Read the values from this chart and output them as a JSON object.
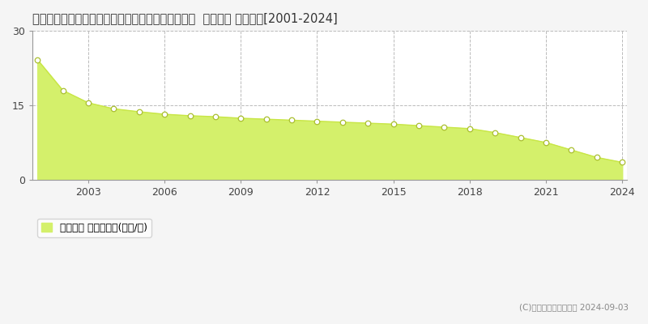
{
  "title": "愛知県知多郡南知多町大字山海字荒布越１２０番２  地価公示 地価推移[2001-2024]",
  "years": [
    2001,
    2002,
    2003,
    2004,
    2005,
    2006,
    2007,
    2008,
    2009,
    2010,
    2011,
    2012,
    2013,
    2014,
    2015,
    2016,
    2017,
    2018,
    2019,
    2020,
    2021,
    2022,
    2023,
    2024
  ],
  "values": [
    24.2,
    18.0,
    15.5,
    14.3,
    13.7,
    13.2,
    12.9,
    12.7,
    12.4,
    12.2,
    12.0,
    11.8,
    11.6,
    11.4,
    11.2,
    10.9,
    10.6,
    10.3,
    9.5,
    8.5,
    7.5,
    6.0,
    4.5,
    3.5
  ],
  "fill_color": "#d4f06b",
  "line_color": "#c8e645",
  "marker_facecolor": "#ffffff",
  "marker_edgecolor": "#aabf30",
  "bg_color": "#f5f5f5",
  "plot_bg_color": "#ffffff",
  "grid_color": "#bbbbbb",
  "yticks": [
    0,
    15,
    30
  ],
  "xticks": [
    2003,
    2006,
    2009,
    2012,
    2015,
    2018,
    2021,
    2024
  ],
  "ylim": [
    0,
    30
  ],
  "xlim_left": 2000.8,
  "xlim_right": 2024.2,
  "legend_label": "地価公示 平均坪単価(万円/坪)",
  "copyright_text": "(C)土地価格ドットコム 2024-09-03",
  "title_fontsize": 10.5,
  "tick_fontsize": 9,
  "legend_fontsize": 9
}
